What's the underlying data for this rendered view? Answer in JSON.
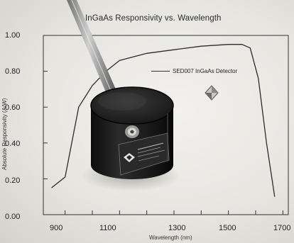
{
  "title": "InGaAs Responsivity vs. Wavelength",
  "ylabel": "Absolute Responsivity (A/W)",
  "xlabel": "Wavelength (nm)",
  "legend": "SED007 InGaAs Detector",
  "yticks": [
    "1.00",
    "0.80",
    "0.60",
    "0.40",
    "0.20",
    "0.00"
  ],
  "xticks": [
    "900",
    "1100",
    "1300",
    "1500",
    "1700"
  ],
  "chart_data": {
    "type": "line",
    "title": "InGaAs Responsivity vs. Wavelength",
    "xlabel": "Wavelength (nm)",
    "ylabel": "Absolute Responsivity (A/W)",
    "xlim": [
      850,
      1700
    ],
    "ylim": [
      0,
      1.0
    ],
    "series": [
      {
        "name": "SED007 InGaAs Detector",
        "x": [
          850,
          900,
          950,
          1000,
          1050,
          1100,
          1200,
          1300,
          1400,
          1500,
          1550,
          1580,
          1610,
          1640,
          1670
        ],
        "y": [
          0.15,
          0.21,
          0.6,
          0.72,
          0.8,
          0.86,
          0.9,
          0.92,
          0.94,
          0.95,
          0.95,
          0.93,
          0.76,
          0.4,
          0.1
        ]
      }
    ]
  }
}
